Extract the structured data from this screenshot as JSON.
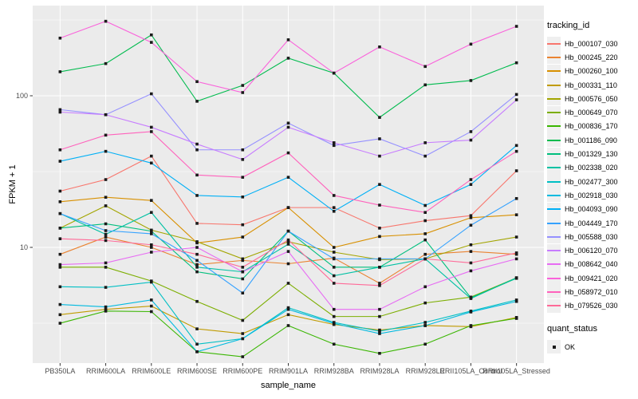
{
  "chart_data": {
    "type": "line",
    "title": "",
    "xlabel": "sample_name",
    "ylabel": "FPKM + 1",
    "y_scale": "log10",
    "y_tick_labels": [
      "100",
      "10"
    ],
    "y_tick_values": [
      100,
      10
    ],
    "y_minor_values": [
      316.2,
      31.62,
      3.162
    ],
    "ylim": [
      1.7,
      380
    ],
    "grid": true,
    "legend_position": "right",
    "marker_shape": "filled-square",
    "marker_color": "#1a1a1a",
    "categories": [
      "PB350LA",
      "RRIM600LA",
      "RRIM600LE",
      "RRIM600SE",
      "RRIM600PE",
      "RRIM901LA",
      "RRIM928BA",
      "RRIM928LA",
      "RRIM928LE",
      "RRII105LA_Control",
      "RRII105LA_Stressed"
    ],
    "series": [
      {
        "name": "Hb_000107_030",
        "color": "#F8766D",
        "values": [
          23.5,
          28,
          40,
          14.4,
          14.1,
          18.3,
          18.3,
          13.4,
          15,
          16.2,
          32
        ]
      },
      {
        "name": "Hb_000245_220",
        "color": "#EA8331",
        "values": [
          9.0,
          11.7,
          10.0,
          7.7,
          8.2,
          7.8,
          8.5,
          5.8,
          9.0,
          9.4,
          9.0
        ]
      },
      {
        "name": "Hb_000260_100",
        "color": "#D89000",
        "values": [
          20,
          21.4,
          20.4,
          10.7,
          11.7,
          18.3,
          10,
          11.8,
          12.3,
          15.7,
          16.4
        ]
      },
      {
        "name": "Hb_000331_110",
        "color": "#C09B00",
        "values": [
          3.6,
          3.9,
          4.1,
          2.9,
          2.7,
          3.6,
          3.1,
          2.85,
          3.05,
          3.0,
          3.45
        ]
      },
      {
        "name": "Hb_000576_050",
        "color": "#A3A500",
        "values": [
          13.4,
          18.8,
          13,
          10.9,
          8.4,
          10.9,
          9.3,
          8.3,
          8.4,
          10.4,
          11.7
        ]
      },
      {
        "name": "Hb_000649_070",
        "color": "#7CAE00",
        "values": [
          7.4,
          7.4,
          6.0,
          4.4,
          3.3,
          5.8,
          3.5,
          3.5,
          4.3,
          4.7,
          6.3
        ]
      },
      {
        "name": "Hb_000836_170",
        "color": "#39B600",
        "values": [
          3.16,
          3.8,
          3.77,
          2.05,
          1.9,
          3.05,
          2.3,
          2.0,
          2.3,
          3.05,
          3.4
        ]
      },
      {
        "name": "Hb_001186_090",
        "color": "#00BB4E",
        "values": [
          144,
          163,
          252,
          92,
          117,
          177,
          141,
          72,
          118,
          126,
          165
        ]
      },
      {
        "name": "Hb_001329_130",
        "color": "#00BF7D",
        "values": [
          13.4,
          14.3,
          12.8,
          6.9,
          6.2,
          12.8,
          7.4,
          7.4,
          11.2,
          4.65,
          6.25
        ]
      },
      {
        "name": "Hb_002338_020",
        "color": "#00C1A3",
        "values": [
          16.7,
          12.2,
          17.0,
          7.4,
          6.9,
          10.5,
          6.5,
          7.4,
          8.4,
          4.6,
          6.3
        ]
      },
      {
        "name": "Hb_002477_300",
        "color": "#00BFC4",
        "values": [
          5.5,
          5.45,
          5.9,
          2.3,
          2.5,
          4.0,
          3.2,
          2.8,
          3.2,
          3.8,
          4.5
        ]
      },
      {
        "name": "Hb_002918_030",
        "color": "#00BAE0",
        "values": [
          4.2,
          4.05,
          4.5,
          2.05,
          2.5,
          3.9,
          3.15,
          2.7,
          3.05,
          3.75,
          4.4
        ]
      },
      {
        "name": "Hb_004093_090",
        "color": "#00B0F6",
        "values": [
          37,
          43,
          36,
          22,
          21.5,
          29,
          17.3,
          26,
          18.9,
          26,
          47
        ]
      },
      {
        "name": "Hb_004449_170",
        "color": "#35A2FF",
        "values": [
          16.7,
          12.9,
          12.3,
          8.2,
          5.0,
          12.8,
          8.4,
          8.4,
          8.4,
          14,
          21
        ]
      },
      {
        "name": "Hb_005588_030",
        "color": "#9590FF",
        "values": [
          81,
          75,
          103,
          44,
          44,
          66,
          47,
          52,
          40,
          58,
          102
        ]
      },
      {
        "name": "Hb_006120_070",
        "color": "#C77CFF",
        "values": [
          78,
          75,
          62,
          48,
          38,
          62,
          49,
          40,
          49,
          51,
          94
        ]
      },
      {
        "name": "Hb_008642_040",
        "color": "#E76BF3",
        "values": [
          7.7,
          7.9,
          9.3,
          10.0,
          6.9,
          9.4,
          3.9,
          3.9,
          5.5,
          7.0,
          8.4
        ]
      },
      {
        "name": "Hb_009421_020",
        "color": "#FA62DB",
        "values": [
          240,
          310,
          225,
          124,
          105,
          234,
          141,
          210,
          156,
          219,
          287
        ]
      },
      {
        "name": "Hb_058972_010",
        "color": "#FF62BC",
        "values": [
          44,
          55,
          58,
          30,
          29,
          42,
          22,
          19,
          17,
          28,
          43
        ]
      },
      {
        "name": "Hb_079526_030",
        "color": "#FF6A98",
        "values": [
          11.4,
          11.1,
          10.4,
          9.0,
          7.4,
          11.2,
          5.8,
          5.6,
          8.4,
          7.9,
          9.2
        ]
      }
    ]
  },
  "legend": {
    "tracking_title": "tracking_id",
    "quant_title": "quant_status",
    "quant_items": [
      {
        "label": "OK",
        "marker": "black-square"
      }
    ]
  },
  "colors": {
    "panel_bg": "#EBEBEB",
    "grid": "#FFFFFF",
    "tick_text": "#4D4D4D",
    "axis_text": "#000000",
    "outer_bg": "#FFFFFF",
    "marker": "#1A1A1A"
  }
}
